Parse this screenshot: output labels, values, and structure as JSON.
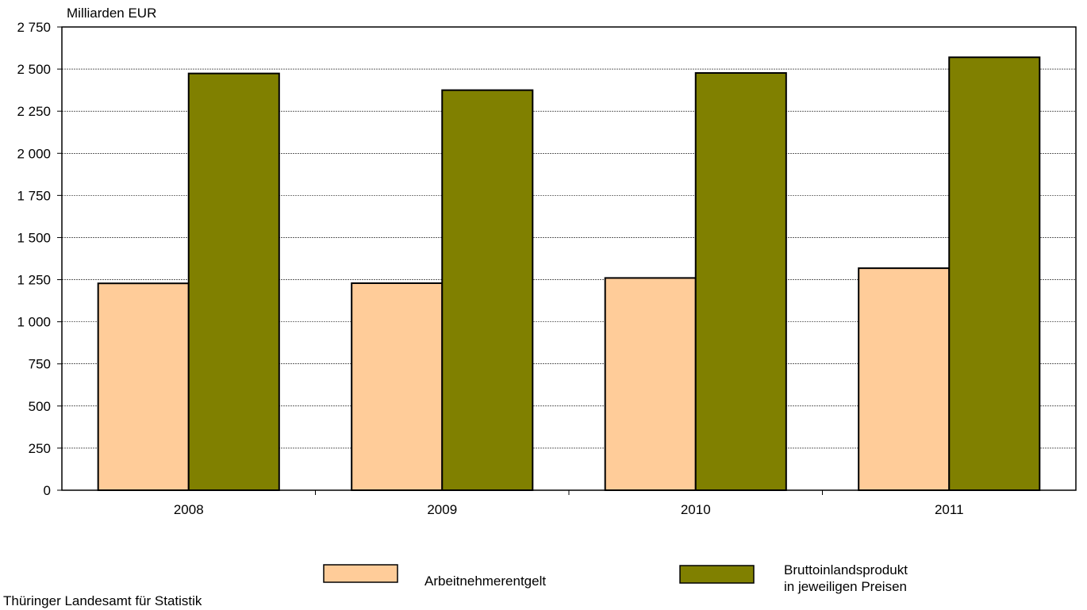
{
  "chart_data": {
    "type": "bar",
    "ylabel": "Milliarden EUR",
    "categories": [
      "2008",
      "2009",
      "2010",
      "2011"
    ],
    "ylim": [
      0,
      2750
    ],
    "yticks": [
      0,
      250,
      500,
      750,
      1000,
      1250,
      1500,
      1750,
      2000,
      2250,
      2500,
      2750
    ],
    "ytick_labels": [
      "0",
      "250",
      "500",
      "750",
      "1 000",
      "1 250",
      "1 500",
      "1 750",
      "2 000",
      "2 250",
      "2 500",
      "2 750"
    ],
    "grid": true,
    "legend_position": "bottom",
    "series": [
      {
        "name": "Arbeitnehmerentgelt",
        "color": "#FFCC99",
        "values": [
          1228,
          1229,
          1260,
          1318
        ]
      },
      {
        "name": "Bruttoinlandsprodukt in jeweiligen Preisen",
        "name_lines": [
          "Bruttoinlandsprodukt",
          "in jeweiligen Preisen"
        ],
        "color": "#808000",
        "values": [
          2474,
          2375,
          2477,
          2570
        ]
      }
    ]
  },
  "footer": {
    "source": "Thüringer Landesamt für Statistik"
  }
}
